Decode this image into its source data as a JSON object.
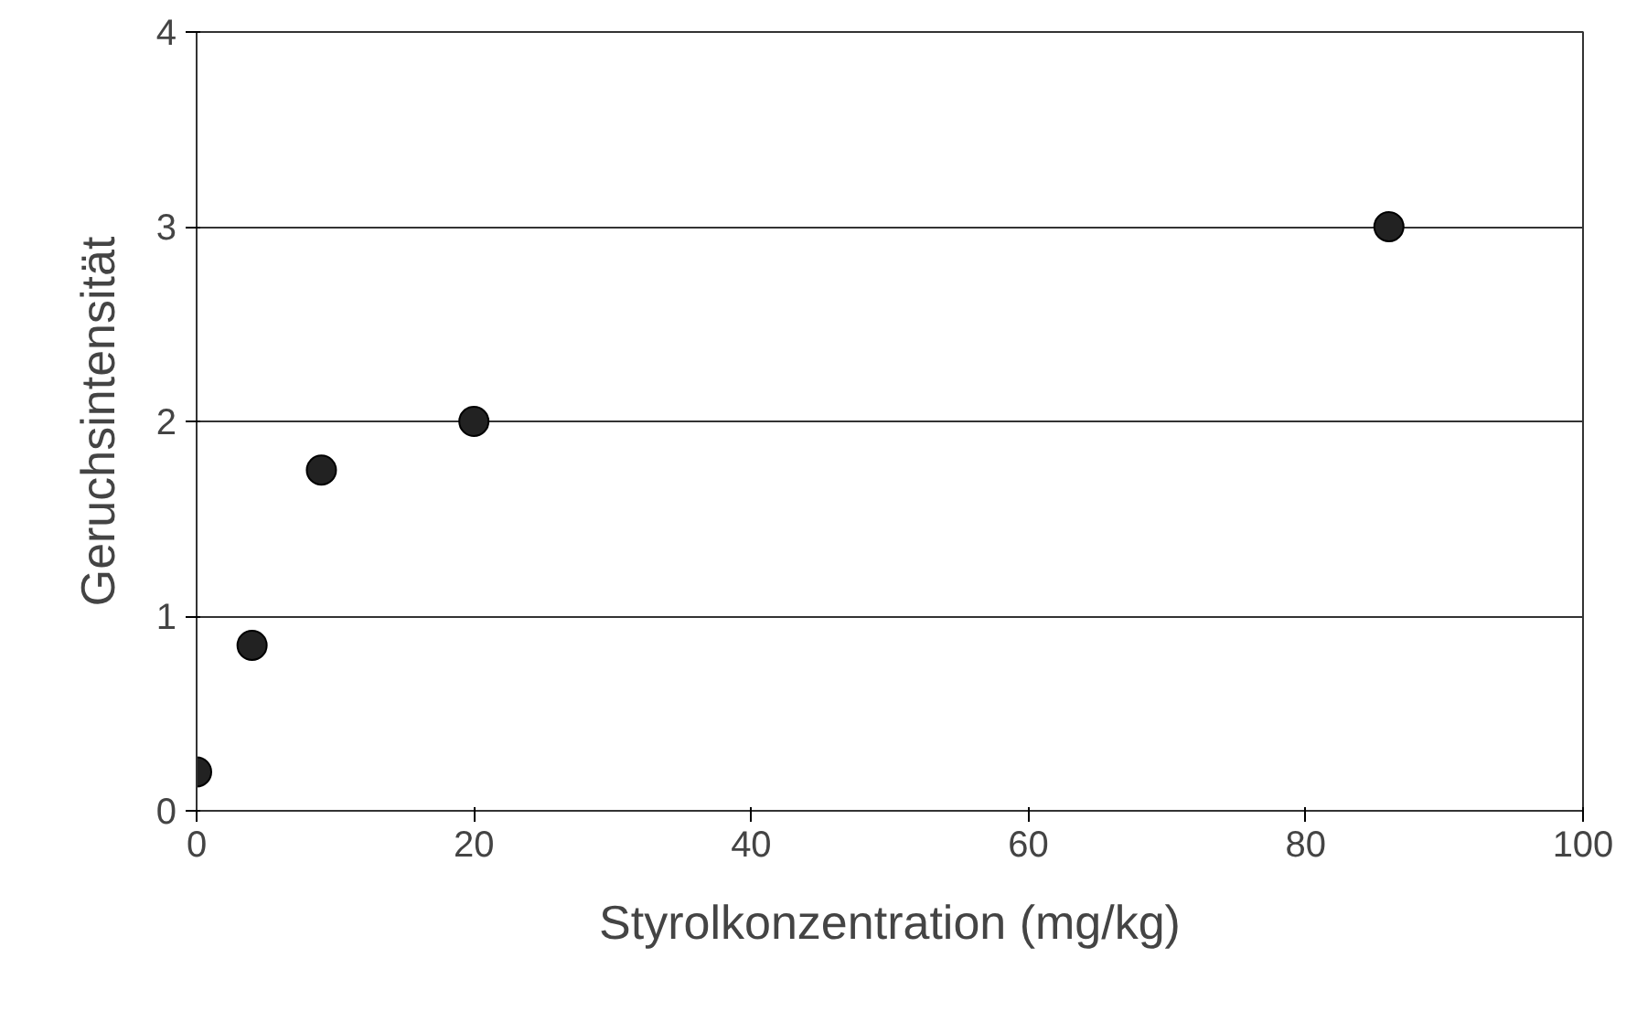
{
  "chart_data": {
    "type": "scatter",
    "xlabel": "Styrolkonzentration (mg/kg)",
    "ylabel": "Geruchsintensität",
    "x": [
      0,
      4,
      9,
      20,
      86
    ],
    "values": [
      0.2,
      0.85,
      1.75,
      2,
      3
    ],
    "color": "#222222",
    "marker": "circle",
    "xlim": [
      0,
      100
    ],
    "xticks": [
      0,
      20,
      40,
      60,
      80,
      100
    ],
    "ylim": [
      0,
      4
    ],
    "yticks": [
      0,
      1,
      2,
      3,
      4
    ],
    "grid": "y"
  }
}
